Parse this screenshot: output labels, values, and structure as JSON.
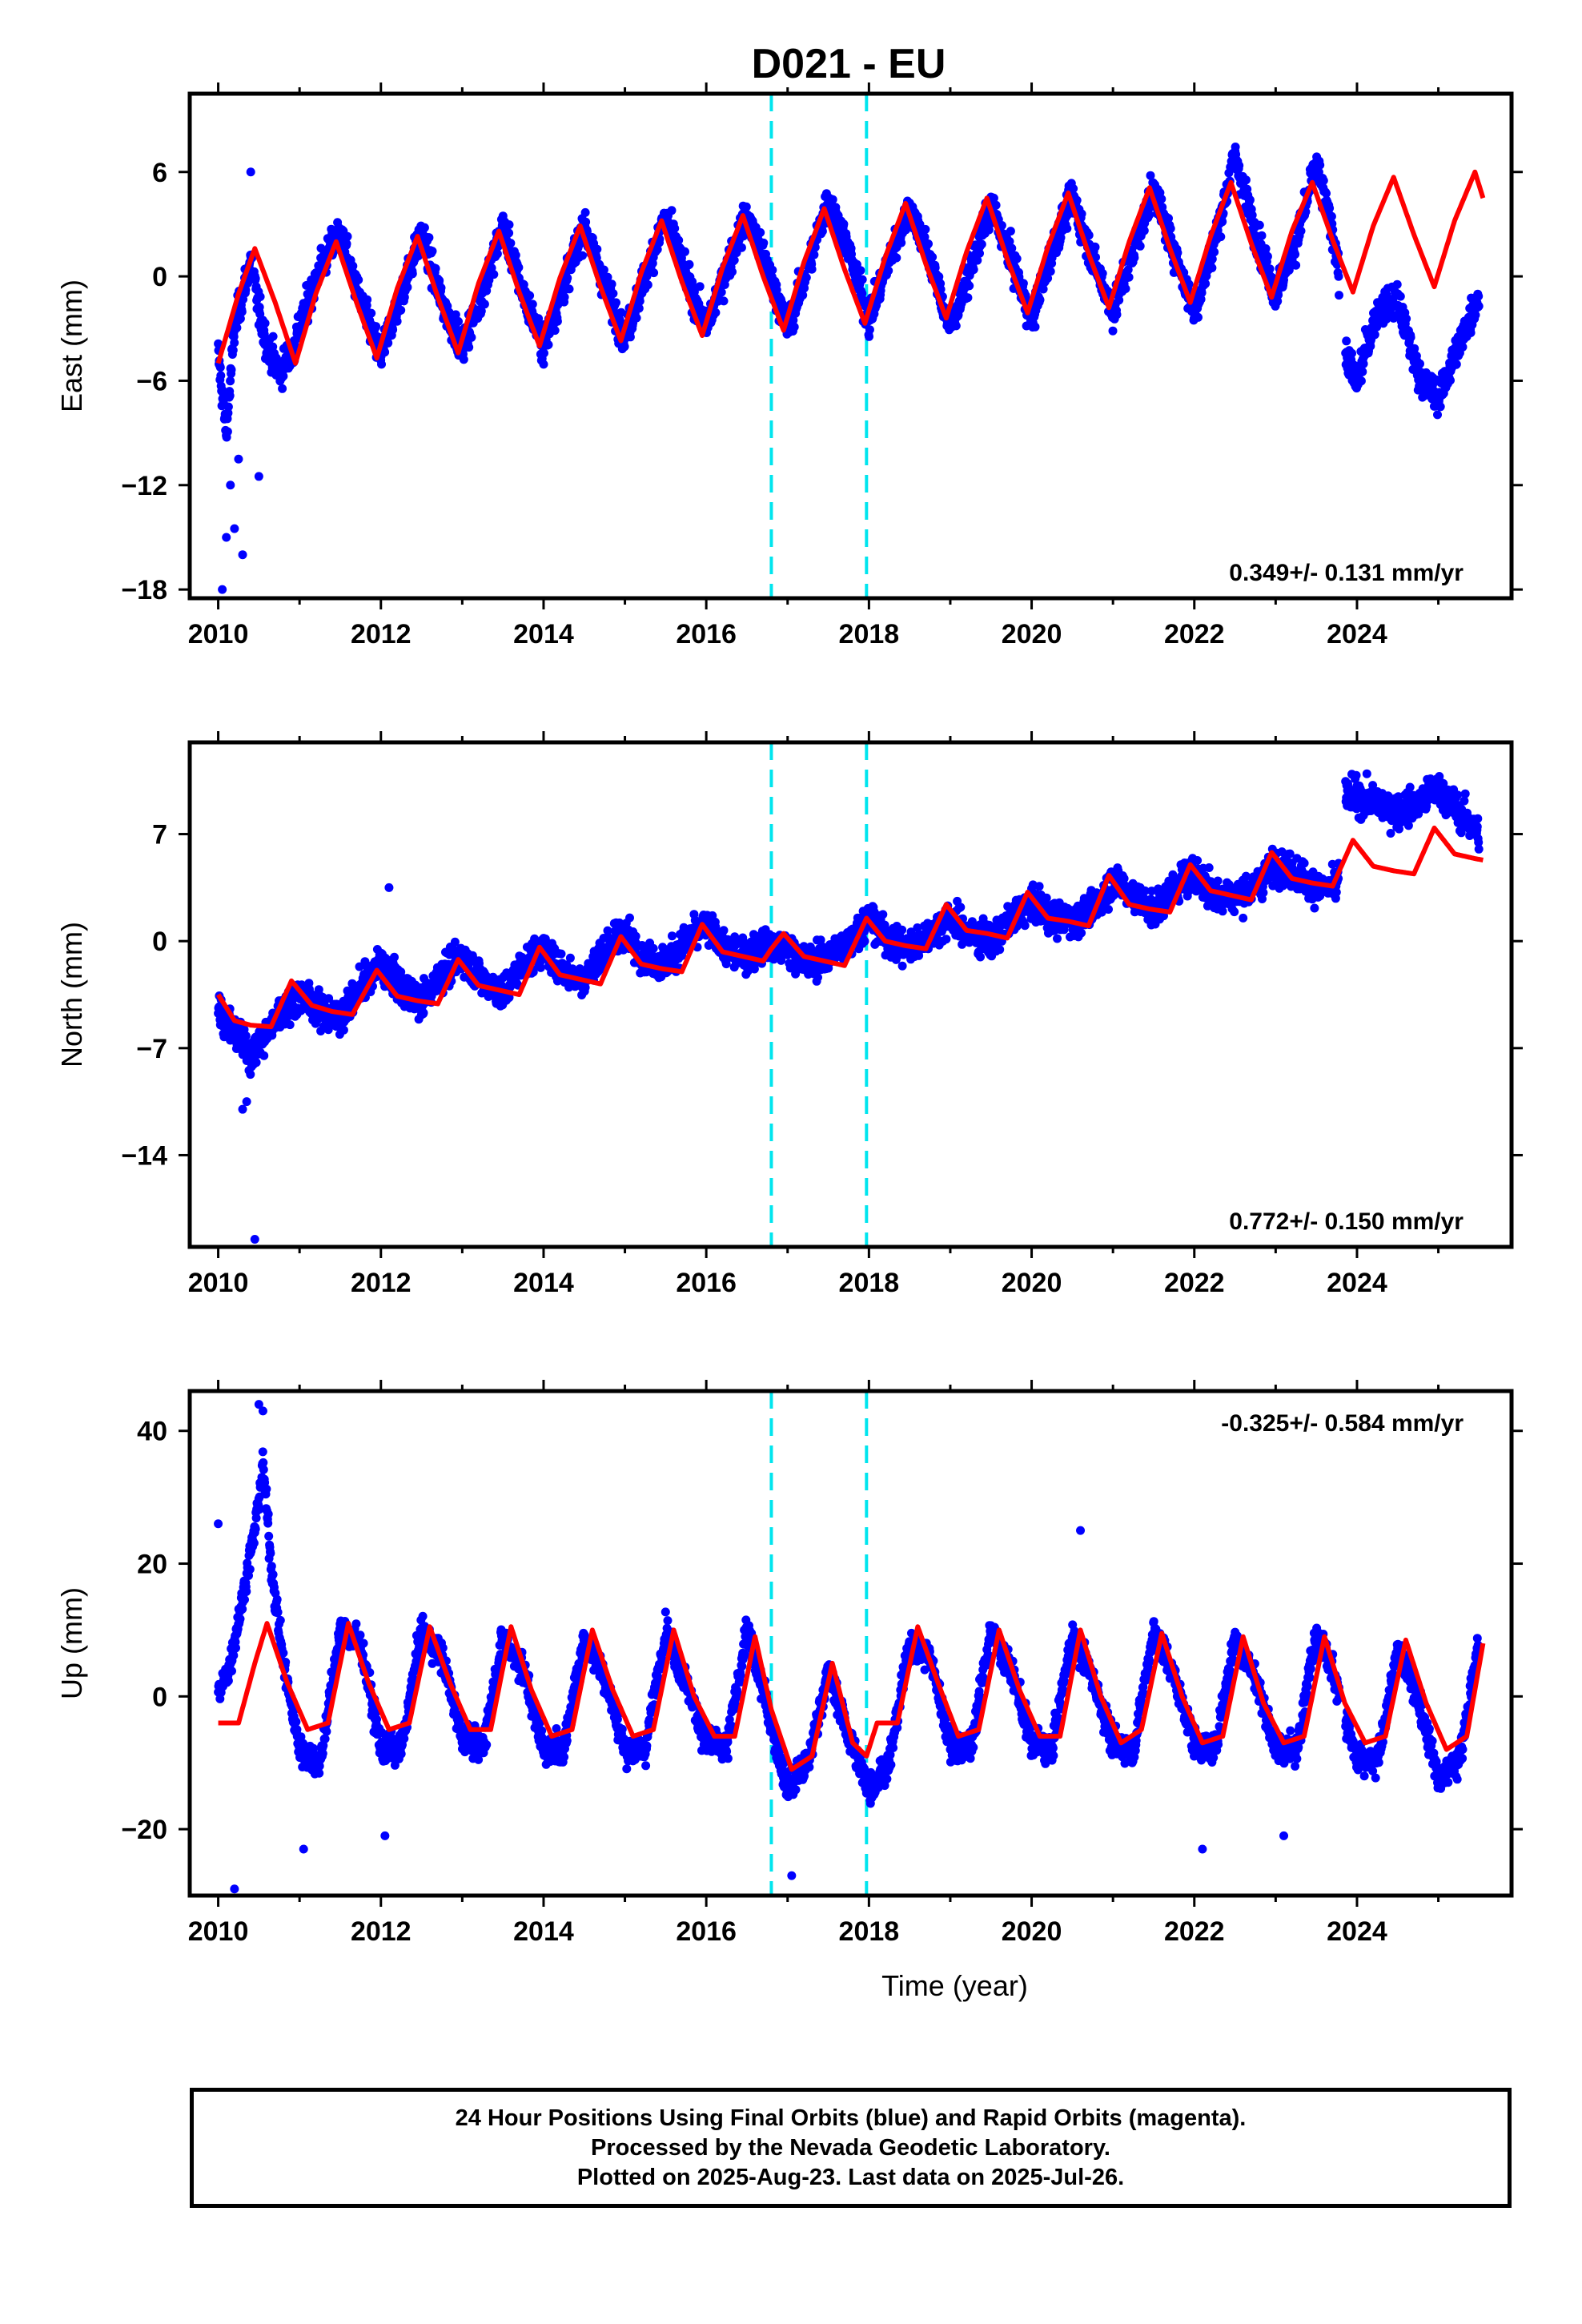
{
  "title": "D021 - EU",
  "chart_data": [
    {
      "type": "scatter",
      "panel": "east",
      "ylabel": "East (mm)",
      "xlabel": "",
      "x_ticks": [
        "2010",
        "2012",
        "2014",
        "2016",
        "2018",
        "2020",
        "2022",
        "2024"
      ],
      "y_ticks": [
        6,
        0,
        -6,
        -12,
        -18
      ],
      "xlim": [
        2009.65,
        2025.9
      ],
      "ylim": [
        -18.5,
        10.5
      ],
      "rate": "0.349+/- 0.131 mm/yr",
      "rate_position": "bottom-right",
      "grid": false,
      "colors": {
        "points": "#0000ff",
        "model": "#ff0000",
        "steps": "#00e5ee"
      },
      "vertical_dashed_lines_x": [
        2016.8,
        2017.97
      ],
      "series": [
        {
          "kind": "points",
          "x": [
            2010.0,
            2010.1,
            2010.2,
            2010.3,
            2010.4,
            2010.5,
            2010.6,
            2010.75,
            2010.9,
            2011.0,
            2011.25,
            2011.5,
            2011.75,
            2012.0,
            2012.25,
            2012.5,
            2012.75,
            2013.0,
            2013.25,
            2013.5,
            2013.75,
            2014.0,
            2014.25,
            2014.5,
            2014.75,
            2015.0,
            2015.25,
            2015.5,
            2015.75,
            2016.0,
            2016.25,
            2016.5,
            2016.75,
            2017.0,
            2017.25,
            2017.5,
            2017.75,
            2018.0,
            2018.25,
            2018.5,
            2018.75,
            2019.0,
            2019.25,
            2019.5,
            2019.75,
            2020.0,
            2020.25,
            2020.5,
            2020.75,
            2021.0,
            2021.25,
            2021.5,
            2021.75,
            2022.0,
            2022.25,
            2022.5,
            2022.75,
            2023.0,
            2023.25,
            2023.5,
            2023.75,
            2023.85,
            2024.0,
            2024.25,
            2024.5,
            2024.75,
            2025.0,
            2025.25,
            2025.5
          ],
          "y": [
            -4.5,
            -9.0,
            -3.0,
            -1.0,
            1.0,
            -2.0,
            -4.0,
            -5.5,
            -4.5,
            -3.0,
            0.5,
            2.5,
            -1.5,
            -4.5,
            -1.0,
            2.5,
            -1.5,
            -4.0,
            -1.0,
            3.0,
            -1.0,
            -4.0,
            -0.5,
            3.0,
            -0.5,
            -3.5,
            0.0,
            3.5,
            0.0,
            -3.0,
            0.5,
            3.5,
            0.5,
            -3.0,
            0.5,
            4.5,
            1.5,
            -2.5,
            1.0,
            4.0,
            1.0,
            -3.0,
            0.5,
            4.0,
            1.0,
            -2.5,
            1.5,
            4.5,
            1.0,
            -2.0,
            1.5,
            5.0,
            1.5,
            -2.0,
            2.0,
            7.0,
            2.5,
            -1.0,
            2.0,
            6.5,
            1.5,
            -4.5,
            -6.0,
            -2.0,
            -1.5,
            -5.5,
            -7.0,
            -4.0,
            -1.0
          ],
          "outliers_x": [
            2010.05,
            2010.1,
            2010.15,
            2010.2,
            2010.3,
            2010.4,
            2010.5,
            2010.25
          ],
          "outliers_y": [
            -18.0,
            -15.0,
            -12.0,
            -14.5,
            -16.0,
            6.0,
            -11.5,
            -10.5
          ]
        },
        {
          "kind": "model",
          "x": [
            2010.0,
            2010.25,
            2010.45,
            2010.7,
            2010.95,
            2011.2,
            2011.45,
            2011.7,
            2011.95,
            2012.2,
            2012.45,
            2012.7,
            2012.95,
            2013.2,
            2013.45,
            2013.7,
            2013.95,
            2014.2,
            2014.45,
            2014.7,
            2014.95,
            2015.2,
            2015.45,
            2015.7,
            2015.95,
            2016.2,
            2016.45,
            2016.7,
            2016.95,
            2017.2,
            2017.45,
            2017.7,
            2017.95,
            2018.2,
            2018.45,
            2018.7,
            2018.95,
            2019.2,
            2019.45,
            2019.7,
            2019.95,
            2020.2,
            2020.45,
            2020.7,
            2020.95,
            2021.2,
            2021.45,
            2021.7,
            2021.95,
            2022.2,
            2022.45,
            2022.7,
            2022.95,
            2023.2,
            2023.45,
            2023.7,
            2023.95,
            2024.2,
            2024.45,
            2024.7,
            2024.95,
            2025.2,
            2025.45,
            2025.55
          ],
          "y": [
            -5.0,
            -1.0,
            1.6,
            -1.5,
            -5.0,
            -1.0,
            2.0,
            -1.5,
            -4.7,
            -0.7,
            2.3,
            -1.2,
            -4.4,
            -0.4,
            2.6,
            -0.9,
            -4.0,
            -0.1,
            2.9,
            -0.6,
            -3.7,
            0.2,
            3.2,
            -0.3,
            -3.4,
            0.5,
            3.5,
            0.0,
            -3.1,
            0.8,
            3.9,
            0.4,
            -2.7,
            1.1,
            4.2,
            0.7,
            -2.4,
            1.4,
            4.5,
            1.0,
            -2.1,
            1.7,
            4.8,
            1.3,
            -1.8,
            2.0,
            5.1,
            1.6,
            -1.5,
            2.3,
            5.4,
            1.9,
            -1.2,
            2.6,
            5.4,
            2.1,
            -0.9,
            2.9,
            5.7,
            2.4,
            -0.6,
            3.2,
            6.0,
            4.5
          ]
        }
      ]
    },
    {
      "type": "scatter",
      "panel": "north",
      "ylabel": "North (mm)",
      "xlabel": "",
      "x_ticks": [
        "2010",
        "2012",
        "2014",
        "2016",
        "2018",
        "2020",
        "2022",
        "2024"
      ],
      "y_ticks": [
        7,
        0,
        -7,
        -14
      ],
      "xlim": [
        2009.65,
        2025.9
      ],
      "ylim": [
        -20,
        13
      ],
      "rate": "0.772+/- 0.150 mm/yr",
      "rate_position": "bottom-right",
      "grid": false,
      "colors": {
        "points": "#0000ff",
        "model": "#ff0000",
        "steps": "#00e5ee"
      },
      "vertical_dashed_lines_x": [
        2016.8,
        2017.97
      ],
      "series": [
        {
          "kind": "points",
          "x": [
            2010.0,
            2010.2,
            2010.4,
            2010.6,
            2010.8,
            2011.0,
            2011.25,
            2011.5,
            2011.75,
            2012.0,
            2012.25,
            2012.5,
            2012.75,
            2013.0,
            2013.25,
            2013.5,
            2013.75,
            2014.0,
            2014.25,
            2014.5,
            2014.75,
            2015.0,
            2015.25,
            2015.5,
            2015.75,
            2016.0,
            2016.25,
            2016.5,
            2016.75,
            2017.0,
            2017.25,
            2017.5,
            2017.75,
            2018.0,
            2018.25,
            2018.5,
            2018.75,
            2019.0,
            2019.25,
            2019.5,
            2019.75,
            2020.0,
            2020.25,
            2020.5,
            2020.75,
            2021.0,
            2021.25,
            2021.5,
            2021.75,
            2022.0,
            2022.25,
            2022.5,
            2022.75,
            2023.0,
            2023.25,
            2023.5,
            2023.75,
            2023.85,
            2024.0,
            2024.25,
            2024.5,
            2024.75,
            2025.0,
            2025.25,
            2025.5
          ],
          "y": [
            -4.5,
            -6.0,
            -7.5,
            -6.0,
            -4.5,
            -3.5,
            -4.5,
            -5.0,
            -3.0,
            -1.5,
            -3.0,
            -4.0,
            -2.0,
            -1.0,
            -2.5,
            -3.5,
            -1.5,
            -0.5,
            -2.0,
            -2.5,
            -0.5,
            0.5,
            -1.0,
            -1.5,
            0.0,
            1.0,
            -0.5,
            -1.0,
            0.0,
            -0.5,
            -1.5,
            -1.0,
            0.0,
            1.5,
            0.0,
            -0.5,
            0.5,
            1.5,
            0.5,
            0.0,
            1.5,
            2.5,
            1.5,
            1.5,
            2.0,
            4.0,
            3.0,
            2.0,
            3.5,
            4.5,
            3.0,
            3.0,
            3.5,
            5.0,
            4.5,
            3.5,
            3.5,
            9.5,
            9.5,
            9.0,
            8.5,
            9.0,
            10.0,
            8.5,
            7.0
          ],
          "outliers_x": [
            2010.3,
            2010.35,
            2010.45,
            2012.1
          ],
          "outliers_y": [
            -11.0,
            -10.5,
            -19.5,
            3.5
          ]
        },
        {
          "kind": "model",
          "x": [
            2010.0,
            2010.2,
            2010.4,
            2010.65,
            2010.9,
            2011.15,
            2011.4,
            2011.65,
            2011.95,
            2012.2,
            2012.45,
            2012.7,
            2012.95,
            2013.2,
            2013.45,
            2013.7,
            2013.95,
            2014.2,
            2014.45,
            2014.7,
            2014.95,
            2015.2,
            2015.45,
            2015.7,
            2015.95,
            2016.2,
            2016.45,
            2016.7,
            2016.8,
            2016.95,
            2017.2,
            2017.45,
            2017.7,
            2017.97,
            2018.2,
            2018.45,
            2018.7,
            2018.95,
            2019.2,
            2019.45,
            2019.7,
            2019.95,
            2020.2,
            2020.45,
            2020.7,
            2020.95,
            2021.2,
            2021.45,
            2021.7,
            2021.95,
            2022.2,
            2022.45,
            2022.7,
            2022.95,
            2023.2,
            2023.45,
            2023.7,
            2023.95,
            2024.2,
            2024.45,
            2024.7,
            2024.95,
            2025.2,
            2025.45,
            2025.55
          ],
          "y": [
            -3.5,
            -5.2,
            -5.5,
            -5.6,
            -2.6,
            -4.2,
            -4.6,
            -4.8,
            -1.9,
            -3.6,
            -3.9,
            -4.1,
            -1.2,
            -2.9,
            -3.2,
            -3.5,
            -0.4,
            -2.2,
            -2.5,
            -2.8,
            0.3,
            -1.5,
            -1.8,
            -2.0,
            1.1,
            -0.7,
            -1.0,
            -1.3,
            -0.5,
            0.5,
            -1.0,
            -1.3,
            -1.6,
            1.5,
            0.0,
            -0.3,
            -0.5,
            2.4,
            0.7,
            0.5,
            0.2,
            3.2,
            1.5,
            1.3,
            1.0,
            4.3,
            2.4,
            2.1,
            1.9,
            5.0,
            3.3,
            3.0,
            2.7,
            5.8,
            4.1,
            3.8,
            3.6,
            6.6,
            4.9,
            4.6,
            4.4,
            7.4,
            5.7,
            5.4,
            5.3
          ]
        }
      ]
    },
    {
      "type": "scatter",
      "panel": "up",
      "ylabel": "Up (mm)",
      "xlabel": "Time (year)",
      "x_ticks": [
        "2010",
        "2012",
        "2014",
        "2016",
        "2018",
        "2020",
        "2022",
        "2024"
      ],
      "y_ticks": [
        40,
        20,
        0,
        -20
      ],
      "xlim": [
        2009.65,
        2025.9
      ],
      "ylim": [
        -30,
        46
      ],
      "rate": "-0.325+/- 0.584 mm/yr",
      "rate_position": "top-right",
      "grid": false,
      "colors": {
        "points": "#0000ff",
        "model": "#ff0000",
        "steps": "#00e5ee"
      },
      "vertical_dashed_lines_x": [
        2016.8,
        2017.97
      ],
      "series": [
        {
          "kind": "points",
          "x": [
            2010.0,
            2010.15,
            2010.3,
            2010.45,
            2010.55,
            2010.65,
            2010.8,
            2011.0,
            2011.25,
            2011.5,
            2011.75,
            2012.0,
            2012.25,
            2012.5,
            2012.75,
            2013.0,
            2013.25,
            2013.5,
            2013.75,
            2014.0,
            2014.25,
            2014.5,
            2014.75,
            2015.0,
            2015.25,
            2015.5,
            2015.75,
            2016.0,
            2016.25,
            2016.5,
            2016.75,
            2017.0,
            2017.25,
            2017.5,
            2017.75,
            2018.0,
            2018.25,
            2018.5,
            2018.75,
            2019.0,
            2019.25,
            2019.5,
            2019.75,
            2020.0,
            2020.25,
            2020.5,
            2020.75,
            2021.0,
            2021.25,
            2021.5,
            2021.75,
            2022.0,
            2022.25,
            2022.5,
            2022.75,
            2023.0,
            2023.25,
            2023.5,
            2023.75,
            2024.0,
            2024.25,
            2024.5,
            2024.75,
            2025.0,
            2025.25,
            2025.5
          ],
          "y": [
            0,
            5,
            15,
            25,
            35,
            20,
            5,
            -8,
            -10,
            10,
            8,
            -8,
            -8,
            10,
            6,
            -6,
            -8,
            9,
            4,
            -8,
            -8,
            9,
            3,
            -8,
            -8,
            10,
            2,
            -7,
            -8,
            10,
            -2,
            -14,
            -10,
            4,
            -6,
            -14,
            -10,
            8,
            6,
            -7,
            -8,
            10,
            4,
            -7,
            -8,
            9,
            3,
            -7,
            -8,
            10,
            3,
            -7,
            -8,
            9,
            3,
            -8,
            -8,
            10,
            2,
            -10,
            -10,
            7,
            0,
            -12,
            -10,
            8
          ],
          "outliers_x": [
            2010.5,
            2010.55,
            2010.0,
            2010.2,
            2017.05,
            2020.6,
            2022.1,
            2023.1,
            2011.05,
            2012.05
          ],
          "outliers_y": [
            44,
            43,
            26,
            -29,
            -27,
            25,
            -23,
            -21,
            -23,
            -21
          ]
        },
        {
          "kind": "model",
          "x": [
            2010.0,
            2010.25,
            2010.45,
            2010.6,
            2010.85,
            2011.1,
            2011.35,
            2011.6,
            2011.85,
            2012.1,
            2012.35,
            2012.6,
            2012.85,
            2013.1,
            2013.35,
            2013.6,
            2013.85,
            2014.1,
            2014.35,
            2014.6,
            2014.85,
            2015.1,
            2015.35,
            2015.6,
            2015.85,
            2016.1,
            2016.35,
            2016.6,
            2016.8,
            2017.05,
            2017.3,
            2017.55,
            2017.8,
            2017.97,
            2018.1,
            2018.35,
            2018.6,
            2018.85,
            2019.1,
            2019.35,
            2019.6,
            2019.85,
            2020.1,
            2020.35,
            2020.6,
            2020.85,
            2021.1,
            2021.35,
            2021.6,
            2021.85,
            2022.1,
            2022.35,
            2022.6,
            2022.85,
            2023.1,
            2023.35,
            2023.6,
            2023.85,
            2024.1,
            2024.35,
            2024.6,
            2024.85,
            2025.1,
            2025.35,
            2025.55
          ],
          "y": [
            -4,
            -4,
            5,
            11,
            2,
            -5,
            -4,
            11,
            2,
            -5,
            -4,
            10.5,
            2,
            -5,
            -5,
            10.5,
            1,
            -6,
            -5,
            10,
            1,
            -6,
            -5,
            10,
            0,
            -6,
            -6,
            9,
            -2,
            -11,
            -9,
            5,
            -7,
            -9,
            -4,
            -4,
            10.5,
            2,
            -6,
            -5,
            10,
            1,
            -6,
            -6,
            10,
            0,
            -7,
            -5,
            9.5,
            0,
            -7,
            -6,
            9,
            -1,
            -7,
            -6,
            9,
            -1,
            -7,
            -6,
            8.5,
            -1,
            -8,
            -6,
            8
          ]
        }
      ]
    }
  ],
  "footer": {
    "line1": "24 Hour Positions Using Final Orbits (blue) and Rapid Orbits (magenta).",
    "line2": "Processed by the Nevada Geodetic Laboratory.",
    "line3": "Plotted on 2025-Aug-23. Last data on 2025-Jul-26."
  }
}
